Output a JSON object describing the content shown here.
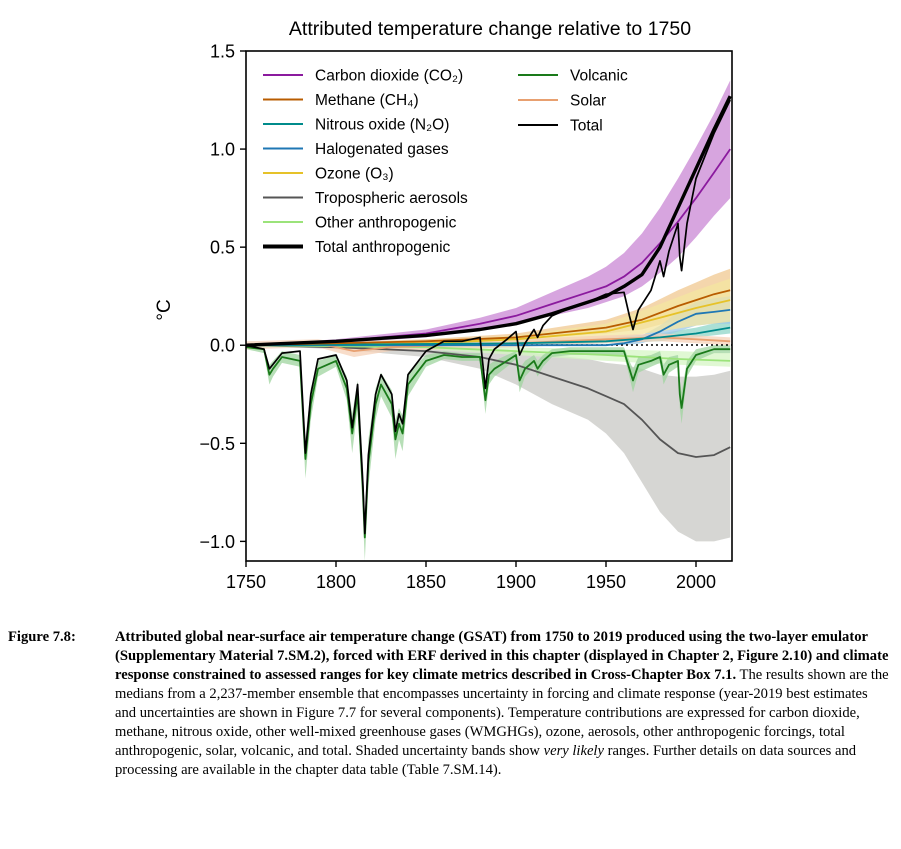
{
  "chart_data": {
    "type": "line",
    "title": "Attributed temperature change relative to 1750",
    "xlabel": "",
    "ylabel": "°C",
    "xlim": [
      1750,
      2020
    ],
    "ylim": [
      -1.1,
      1.5
    ],
    "x_ticks": [
      1750,
      1800,
      1850,
      1900,
      1950,
      2000
    ],
    "x_tick_labels": [
      "1750",
      "1800",
      "1850",
      "1900",
      "1950",
      "2000"
    ],
    "y_ticks": [
      -1.0,
      -0.5,
      0.0,
      0.5,
      1.0,
      1.5
    ],
    "y_tick_labels": [
      "−1.0",
      "−0.5",
      "0.0",
      "0.5",
      "1.0",
      "1.5"
    ],
    "zero_line": "dotted",
    "legend_position": "top-left",
    "series": [
      {
        "name": "Carbon dioxide (CO₂)",
        "color": "#8b1a9e",
        "band_color": "#c987d4",
        "x": [
          1750,
          1800,
          1850,
          1880,
          1900,
          1920,
          1940,
          1950,
          1960,
          1970,
          1980,
          1990,
          2000,
          2010,
          2019
        ],
        "y": [
          0,
          0.02,
          0.06,
          0.11,
          0.15,
          0.21,
          0.27,
          0.3,
          0.35,
          0.42,
          0.52,
          0.63,
          0.75,
          0.88,
          1.0
        ],
        "low": [
          0,
          0.01,
          0.04,
          0.08,
          0.11,
          0.15,
          0.19,
          0.22,
          0.25,
          0.3,
          0.37,
          0.45,
          0.55,
          0.66,
          0.75
        ],
        "high": [
          0,
          0.03,
          0.08,
          0.14,
          0.19,
          0.27,
          0.35,
          0.4,
          0.47,
          0.57,
          0.7,
          0.85,
          1.01,
          1.18,
          1.35
        ]
      },
      {
        "name": "Methane (CH₄)",
        "color": "#b85c00",
        "band_color": "#f0c890",
        "x": [
          1750,
          1850,
          1900,
          1950,
          1970,
          1990,
          2000,
          2010,
          2019
        ],
        "y": [
          0,
          0.02,
          0.04,
          0.09,
          0.13,
          0.2,
          0.23,
          0.26,
          0.28
        ],
        "low": [
          0,
          0.01,
          0.03,
          0.06,
          0.08,
          0.13,
          0.15,
          0.17,
          0.18
        ],
        "high": [
          0,
          0.03,
          0.06,
          0.13,
          0.19,
          0.28,
          0.32,
          0.36,
          0.39
        ]
      },
      {
        "name": "Nitrous oxide (N₂O)",
        "color": "#008b8b",
        "band_color": "#8fd6c8",
        "x": [
          1750,
          1900,
          1950,
          1980,
          2000,
          2019
        ],
        "y": [
          0,
          0.01,
          0.02,
          0.04,
          0.06,
          0.09
        ],
        "low": [
          0,
          0,
          0.01,
          0.02,
          0.04,
          0.06
        ],
        "high": [
          0,
          0.02,
          0.04,
          0.06,
          0.09,
          0.13
        ]
      },
      {
        "name": "Halogenated gases",
        "color": "#1f77b4",
        "band_color": "#9ec8e8",
        "x": [
          1750,
          1950,
          1960,
          1970,
          1980,
          1990,
          2000,
          2010,
          2019
        ],
        "y": [
          0,
          0,
          0.01,
          0.03,
          0.07,
          0.12,
          0.16,
          0.17,
          0.18
        ],
        "low": [
          0,
          0,
          0,
          0.01,
          0.04,
          0.07,
          0.1,
          0.11,
          0.11
        ],
        "high": [
          0,
          0,
          0.02,
          0.05,
          0.1,
          0.17,
          0.22,
          0.24,
          0.25
        ]
      },
      {
        "name": "Ozone (O₃)",
        "color": "#e6c229",
        "band_color": "#f4e6a0",
        "x": [
          1750,
          1850,
          1900,
          1950,
          1980,
          2000,
          2019
        ],
        "y": [
          0,
          0.01,
          0.03,
          0.07,
          0.14,
          0.19,
          0.23
        ],
        "low": [
          0,
          0,
          0.01,
          0.03,
          0.07,
          0.1,
          0.12
        ],
        "high": [
          0,
          0.02,
          0.05,
          0.11,
          0.21,
          0.28,
          0.34
        ]
      },
      {
        "name": "Tropospheric aerosols",
        "color": "#555555",
        "band_color": "#c8c8c4",
        "x": [
          1750,
          1800,
          1850,
          1880,
          1900,
          1920,
          1940,
          1950,
          1960,
          1970,
          1980,
          1990,
          2000,
          2010,
          2019
        ],
        "y": [
          0,
          -0.01,
          -0.03,
          -0.06,
          -0.1,
          -0.16,
          -0.22,
          -0.26,
          -0.3,
          -0.38,
          -0.48,
          -0.55,
          -0.57,
          -0.56,
          -0.52
        ],
        "low": [
          0,
          -0.02,
          -0.06,
          -0.12,
          -0.2,
          -0.3,
          -0.38,
          -0.45,
          -0.55,
          -0.7,
          -0.85,
          -0.95,
          -1.0,
          -1.0,
          -0.98
        ],
        "high": [
          0,
          0,
          -0.01,
          -0.02,
          -0.03,
          -0.05,
          -0.07,
          -0.09,
          -0.1,
          -0.12,
          -0.15,
          -0.16,
          -0.16,
          -0.15,
          -0.13
        ]
      },
      {
        "name": "Other anthropogenic",
        "color": "#9be37a",
        "band_color": "#d6f5c4",
        "x": [
          1750,
          1850,
          1900,
          1950,
          1990,
          2019
        ],
        "y": [
          0,
          -0.01,
          -0.03,
          -0.05,
          -0.07,
          -0.08
        ],
        "low": [
          0,
          -0.02,
          -0.05,
          -0.08,
          -0.1,
          -0.11
        ],
        "high": [
          0,
          0,
          -0.01,
          -0.02,
          -0.03,
          -0.04
        ]
      },
      {
        "name": "Total anthropogenic",
        "color": "#000000",
        "x": [
          1750,
          1800,
          1850,
          1880,
          1900,
          1920,
          1940,
          1950,
          1960,
          1970,
          1980,
          1990,
          2000,
          2010,
          2019
        ],
        "y": [
          0,
          0.02,
          0.05,
          0.08,
          0.11,
          0.16,
          0.22,
          0.25,
          0.3,
          0.36,
          0.5,
          0.7,
          0.9,
          1.1,
          1.27
        ]
      },
      {
        "name": "Volcanic",
        "color": "#1a7a1a",
        "band_color": "#9fd49f",
        "x": [
          1750,
          1760,
          1763,
          1765,
          1770,
          1780,
          1783,
          1786,
          1790,
          1800,
          1806,
          1809,
          1812,
          1815,
          1816,
          1818,
          1822,
          1825,
          1831,
          1833,
          1835,
          1837,
          1840,
          1850,
          1860,
          1870,
          1880,
          1883,
          1885,
          1888,
          1895,
          1900,
          1902,
          1905,
          1910,
          1912,
          1915,
          1920,
          1930,
          1940,
          1950,
          1960,
          1963,
          1965,
          1968,
          1975,
          1980,
          1982,
          1985,
          1990,
          1991,
          1992,
          1995,
          2000,
          2010,
          2019
        ],
        "y": [
          -0.01,
          -0.02,
          -0.15,
          -0.12,
          -0.06,
          -0.08,
          -0.58,
          -0.3,
          -0.12,
          -0.08,
          -0.22,
          -0.45,
          -0.25,
          -0.75,
          -0.98,
          -0.6,
          -0.3,
          -0.2,
          -0.3,
          -0.48,
          -0.4,
          -0.45,
          -0.2,
          -0.08,
          -0.05,
          -0.06,
          -0.06,
          -0.28,
          -0.15,
          -0.12,
          -0.08,
          -0.05,
          -0.18,
          -0.12,
          -0.08,
          -0.12,
          -0.08,
          -0.04,
          -0.03,
          -0.03,
          -0.03,
          -0.03,
          -0.12,
          -0.18,
          -0.1,
          -0.08,
          -0.06,
          -0.15,
          -0.1,
          -0.08,
          -0.25,
          -0.32,
          -0.12,
          -0.05,
          -0.02,
          -0.02
        ],
        "low": [
          -0.02,
          -0.04,
          -0.2,
          -0.16,
          -0.09,
          -0.11,
          -0.68,
          -0.38,
          -0.16,
          -0.11,
          -0.28,
          -0.55,
          -0.32,
          -0.88,
          -1.1,
          -0.72,
          -0.38,
          -0.26,
          -0.37,
          -0.58,
          -0.48,
          -0.54,
          -0.26,
          -0.11,
          -0.07,
          -0.08,
          -0.08,
          -0.35,
          -0.2,
          -0.16,
          -0.11,
          -0.07,
          -0.24,
          -0.16,
          -0.11,
          -0.16,
          -0.11,
          -0.06,
          -0.05,
          -0.05,
          -0.05,
          -0.05,
          -0.16,
          -0.24,
          -0.14,
          -0.11,
          -0.09,
          -0.2,
          -0.14,
          -0.11,
          -0.32,
          -0.4,
          -0.16,
          -0.08,
          -0.04,
          -0.04
        ],
        "high": [
          0,
          -0.01,
          -0.1,
          -0.08,
          -0.03,
          -0.05,
          -0.48,
          -0.22,
          -0.08,
          -0.05,
          -0.16,
          -0.35,
          -0.18,
          -0.62,
          -0.86,
          -0.48,
          -0.22,
          -0.14,
          -0.23,
          -0.38,
          -0.32,
          -0.36,
          -0.14,
          -0.05,
          -0.03,
          -0.04,
          -0.04,
          -0.21,
          -0.1,
          -0.08,
          -0.05,
          -0.03,
          -0.12,
          -0.08,
          -0.05,
          -0.08,
          -0.05,
          -0.02,
          -0.01,
          -0.01,
          -0.01,
          -0.01,
          -0.08,
          -0.12,
          -0.06,
          -0.05,
          -0.03,
          -0.1,
          -0.06,
          -0.05,
          -0.18,
          -0.24,
          -0.08,
          -0.02,
          0,
          0
        ]
      },
      {
        "name": "Solar",
        "color": "#e8a070",
        "band_color": "#f6d2b8",
        "x": [
          1750,
          1790,
          1810,
          1830,
          1860,
          1900,
          1950,
          1980,
          2000,
          2019
        ],
        "y": [
          0,
          0.01,
          -0.03,
          -0.01,
          0,
          0.01,
          0.03,
          0.04,
          0.03,
          0.02
        ],
        "low": [
          -0.02,
          -0.01,
          -0.06,
          -0.03,
          -0.02,
          -0.01,
          0.01,
          0.02,
          0.01,
          0
        ],
        "high": [
          0.02,
          0.03,
          0,
          0.01,
          0.02,
          0.03,
          0.05,
          0.06,
          0.05,
          0.04
        ]
      },
      {
        "name": "Total",
        "color": "#000000",
        "x": [
          1750,
          1760,
          1763,
          1770,
          1780,
          1783,
          1786,
          1790,
          1800,
          1806,
          1809,
          1812,
          1815,
          1816,
          1818,
          1822,
          1825,
          1831,
          1833,
          1835,
          1837,
          1840,
          1850,
          1860,
          1870,
          1880,
          1883,
          1885,
          1888,
          1895,
          1900,
          1902,
          1905,
          1910,
          1912,
          1915,
          1920,
          1930,
          1940,
          1950,
          1960,
          1963,
          1965,
          1968,
          1975,
          1980,
          1982,
          1985,
          1990,
          1991,
          1992,
          1995,
          2000,
          2010,
          2019
        ],
        "y": [
          0,
          -0.02,
          -0.12,
          -0.04,
          -0.03,
          -0.55,
          -0.25,
          -0.07,
          -0.05,
          -0.18,
          -0.42,
          -0.2,
          -0.72,
          -0.96,
          -0.56,
          -0.25,
          -0.15,
          -0.25,
          -0.44,
          -0.35,
          -0.4,
          -0.15,
          -0.03,
          0.02,
          0.02,
          0.04,
          -0.22,
          -0.07,
          -0.02,
          0.03,
          0.07,
          -0.05,
          0.01,
          0.08,
          0.04,
          0.1,
          0.15,
          0.19,
          0.22,
          0.26,
          0.27,
          0.15,
          0.08,
          0.18,
          0.28,
          0.43,
          0.35,
          0.48,
          0.62,
          0.45,
          0.38,
          0.62,
          0.85,
          1.08,
          1.25
        ]
      }
    ]
  },
  "caption": {
    "label": "Figure 7.8:",
    "bold_text": "Attributed global near-surface air temperature change (GSAT) from 1750 to 2019 produced using the two-layer emulator (Supplementary Material 7.SM.2), forced with ERF derived in this chapter (displayed in Chapter 2, Figure 2.10) and climate response constrained to assessed ranges for key climate metrics described in Cross-Chapter Box 7.1.",
    "body_1": " The results shown are the medians from a 2,237-member ensemble that encompasses uncertainty in forcing and climate response (year-2019 best estimates and uncertainties are shown in Figure 7.7 for several components). Temperature contributions are expressed for carbon dioxide, methane, nitrous oxide, other well-mixed greenhouse gases (WMGHGs), ozone, aerosols, other anthropogenic forcings, total anthropogenic, solar, volcanic, and total. Shaded uncertainty bands show ",
    "italic_text": "very likely",
    "body_2": " ranges. Further details on data sources and processing are available in the chapter data table (Table 7.SM.14)."
  }
}
